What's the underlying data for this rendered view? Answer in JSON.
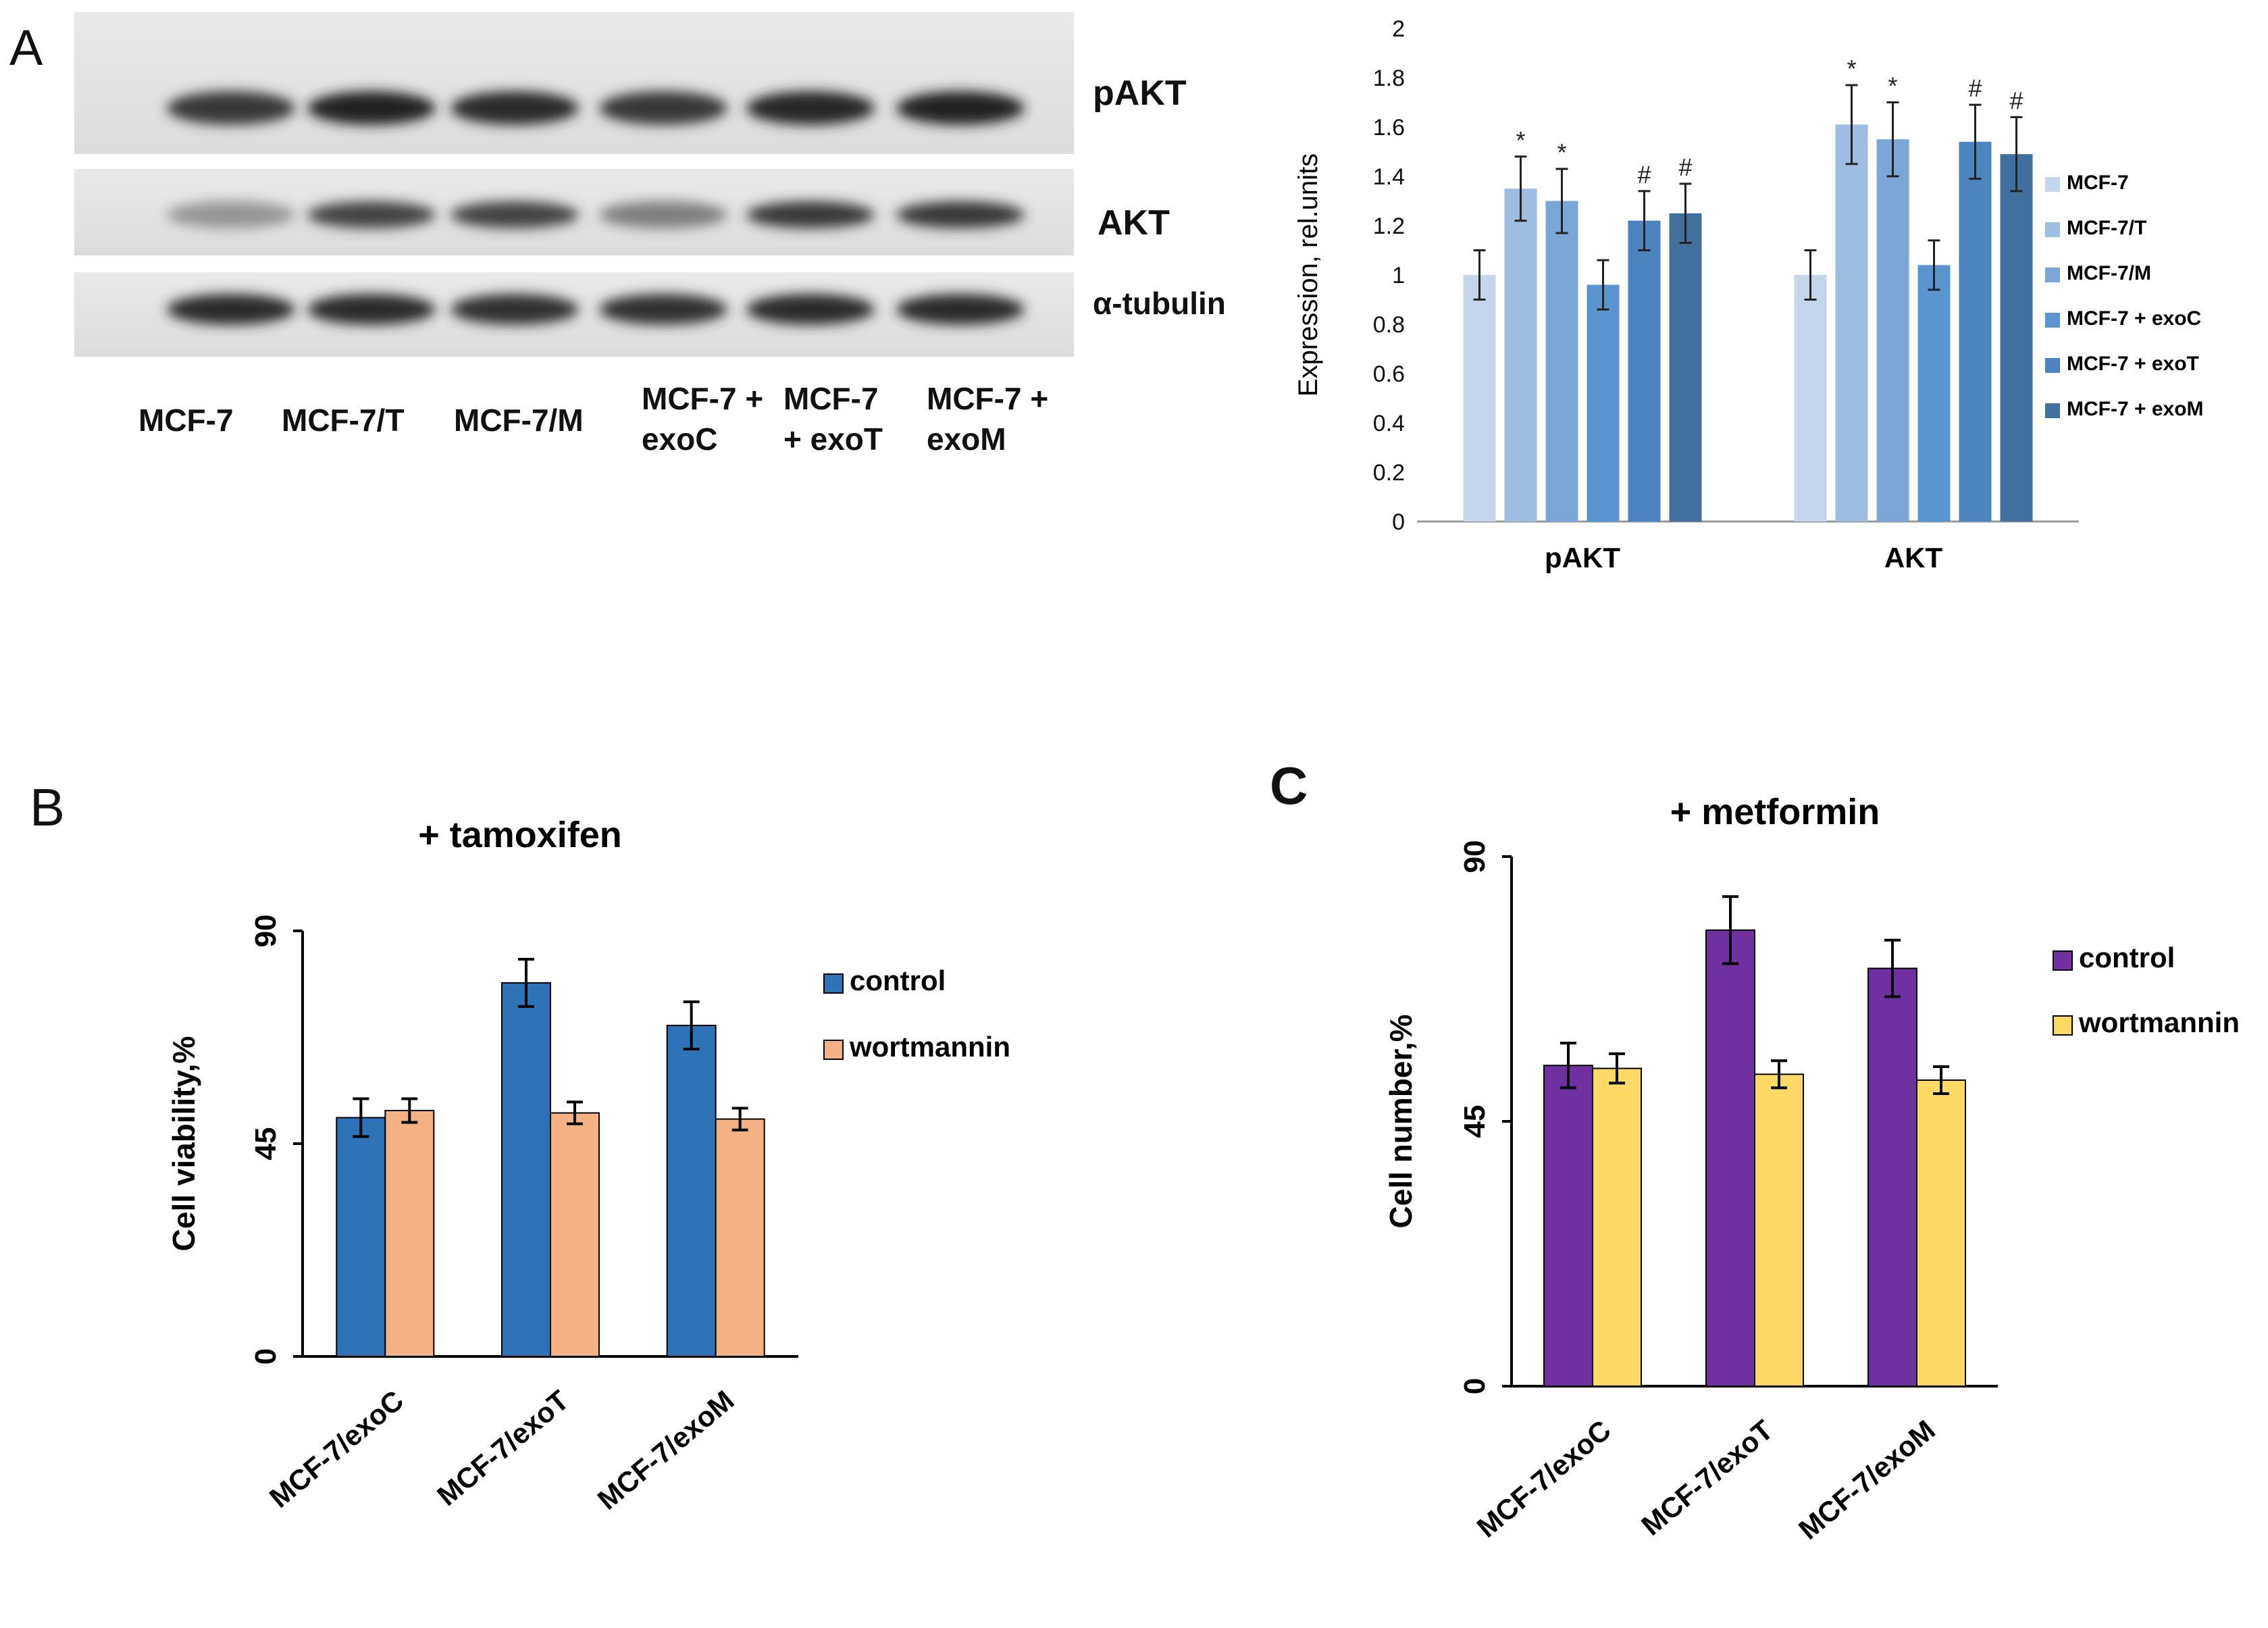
{
  "panels": {
    "a": {
      "letter": "A"
    },
    "b": {
      "letter": "B"
    },
    "c": {
      "letter": "C"
    }
  },
  "blot": {
    "rows": [
      "pAKT",
      "AKT",
      "α-tubulin"
    ],
    "lanes": [
      {
        "line1": "MCF-7",
        "line2": ""
      },
      {
        "line1": "MCF-7/T",
        "line2": ""
      },
      {
        "line1": "MCF-7/M",
        "line2": ""
      },
      {
        "line1": "MCF-7 +",
        "line2": "exoC"
      },
      {
        "line1": "MCF-7",
        "line2": "+ exoT"
      },
      {
        "line1": "MCF-7 +",
        "line2": "exoM"
      }
    ],
    "band_intensity": {
      "pAKT": [
        0.85,
        0.95,
        0.9,
        0.85,
        0.92,
        0.95
      ],
      "AKT": [
        0.45,
        0.8,
        0.8,
        0.55,
        0.85,
        0.85
      ],
      "alpha_tubulin": [
        0.9,
        0.9,
        0.88,
        0.88,
        0.9,
        0.9
      ]
    }
  },
  "chart_data": [
    {
      "id": "A",
      "type": "bar",
      "title": "",
      "ylabel": "Expression, rel.units",
      "xlabel": "",
      "ylim": [
        0,
        2
      ],
      "yticks": [
        "0",
        "0.2",
        "0.4",
        "0.6",
        "0.8",
        "1",
        "1.2",
        "1.4",
        "1.6",
        "1.8",
        "2"
      ],
      "categories": [
        "pAKT",
        "AKT"
      ],
      "series": [
        {
          "name": "MCF-7",
          "color": "#c5d6ea",
          "values": [
            1.0,
            1.0
          ],
          "errors": [
            0.1,
            0.1
          ],
          "marks": [
            "",
            ""
          ]
        },
        {
          "name": "MCF-7/T",
          "color": "#9dbde2",
          "values": [
            1.35,
            1.61
          ],
          "errors": [
            0.13,
            0.16
          ],
          "marks": [
            "*",
            "*"
          ]
        },
        {
          "name": "MCF-7/M",
          "color": "#7aa7d8",
          "values": [
            1.3,
            1.55
          ],
          "errors": [
            0.13,
            0.15
          ],
          "marks": [
            "*",
            "*"
          ]
        },
        {
          "name": "MCF-7 + exoC",
          "color": "#5b95d0",
          "values": [
            0.96,
            1.04
          ],
          "errors": [
            0.1,
            0.1
          ],
          "marks": [
            "",
            ""
          ]
        },
        {
          "name": "MCF-7 + exoT",
          "color": "#4b84bf",
          "values": [
            1.22,
            1.54
          ],
          "errors": [
            0.12,
            0.15
          ],
          "marks": [
            "#",
            "#"
          ]
        },
        {
          "name": "MCF-7 + exoM",
          "color": "#41709f",
          "values": [
            1.25,
            1.49
          ],
          "errors": [
            0.12,
            0.15
          ],
          "marks": [
            "#",
            "#"
          ]
        }
      ],
      "legend": "right"
    },
    {
      "id": "B",
      "type": "bar",
      "title": "+ tamoxifen",
      "ylabel": "Cell viability,%",
      "xlabel": "",
      "ylim": [
        0,
        90
      ],
      "yticks": [
        "0",
        "45",
        "90"
      ],
      "categories": [
        "MCF-7/exoC",
        "MCF-7/exoT",
        "MCF-7/exoM"
      ],
      "series": [
        {
          "name": "control",
          "color": "#2e72b8",
          "values": [
            50.5,
            79,
            70
          ],
          "errors": [
            4,
            5,
            5
          ]
        },
        {
          "name": "wortmannin",
          "color": "#f4b183",
          "values": [
            52,
            51.5,
            50.2
          ],
          "errors": [
            2.5,
            2.3,
            2.3
          ]
        }
      ],
      "legend": "right"
    },
    {
      "id": "C",
      "type": "bar",
      "title": "+ metformin",
      "ylabel": "Cell number,%",
      "xlabel": "",
      "ylim": [
        0,
        90
      ],
      "yticks": [
        "0",
        "45",
        "90"
      ],
      "categories": [
        "MCF-7/exoC",
        "MCF-7/exoT",
        "MCF-7/exoM"
      ],
      "series": [
        {
          "name": "control",
          "color": "#7030a0",
          "values": [
            54.5,
            77.5,
            71
          ],
          "errors": [
            3.8,
            5.7,
            4.8
          ]
        },
        {
          "name": "wortmannin",
          "color": "#ffd966",
          "values": [
            54,
            53,
            52
          ],
          "errors": [
            2.5,
            2.3,
            2.3
          ]
        }
      ],
      "legend": "right"
    }
  ]
}
